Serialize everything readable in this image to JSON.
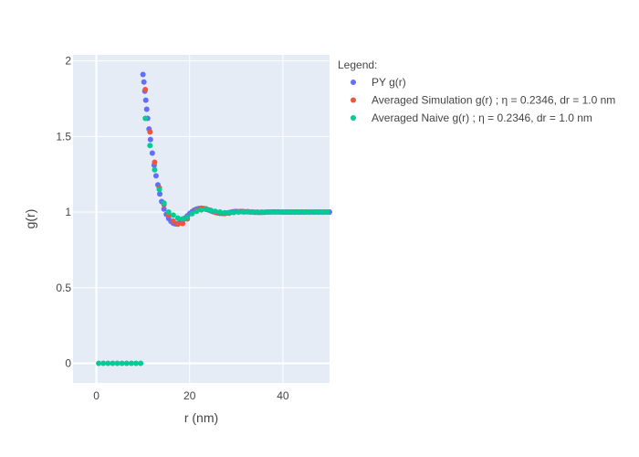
{
  "chart_data": {
    "type": "scatter",
    "xlabel": "r (nm)",
    "ylabel": "g(r)",
    "xlim": [
      -5,
      50
    ],
    "ylim": [
      -0.13,
      2.04
    ],
    "x_ticks": [
      0,
      20,
      40
    ],
    "y_ticks": [
      0,
      0.5,
      1,
      1.5,
      2
    ],
    "x_tick_labels": [
      "0",
      "20",
      "40"
    ],
    "y_tick_labels": [
      "0",
      "0.5",
      "1",
      "1.5",
      "2"
    ],
    "grid": true,
    "plot_background": "#e5ecf6",
    "legend": {
      "title": "Legend:",
      "placement": "right, outside plot"
    },
    "series": [
      {
        "name": "PY g(r)",
        "color": "#636efa",
        "x": [
          10.0,
          10.2,
          10.4,
          10.6,
          10.8,
          11.0,
          11.3,
          11.6,
          12.0,
          12.4,
          12.8,
          13.2,
          13.6,
          14.0,
          14.5,
          15.0,
          15.5,
          16.0,
          16.5,
          17.0,
          17.5,
          18.0,
          18.5,
          19.0,
          19.5,
          20.0,
          20.5,
          21.0,
          21.5,
          22.0,
          22.5,
          23.0,
          23.5,
          24.0,
          24.5,
          25.0,
          25.5,
          26.0,
          26.5,
          27.0,
          27.5,
          28.0,
          28.5,
          29.0,
          29.5,
          30.0,
          31.0,
          32.0,
          33.0,
          34.0,
          35.0,
          36.0,
          37.0,
          38.0,
          39.0,
          40.0,
          41.0,
          42.0,
          43.0,
          44.0,
          45.0,
          46.0,
          47.0,
          48.0,
          49.0,
          50.0
        ],
        "y": [
          1.91,
          1.86,
          1.8,
          1.74,
          1.68,
          1.62,
          1.55,
          1.48,
          1.39,
          1.31,
          1.24,
          1.18,
          1.12,
          1.07,
          1.02,
          0.985,
          0.958,
          0.938,
          0.926,
          0.922,
          0.924,
          0.932,
          0.945,
          0.96,
          0.975,
          0.99,
          1.003,
          1.013,
          1.02,
          1.024,
          1.025,
          1.024,
          1.02,
          1.015,
          1.009,
          1.003,
          0.998,
          0.994,
          0.992,
          0.991,
          0.992,
          0.994,
          0.997,
          1.0,
          1.003,
          1.004,
          1.004,
          1.002,
          1.0,
          0.999,
          0.998,
          0.999,
          1.0,
          1.001,
          1.001,
          1.0,
          1.0,
          1.0,
          1.0,
          1.0,
          1.0,
          1.0,
          1.0,
          1.0,
          1.0,
          1.0
        ]
      },
      {
        "name": "Averaged Simulation g(r) ; η = 0.2346, dr = 1.0 nm",
        "color": "#ef553b",
        "x": [
          10.5,
          11.5,
          12.5,
          13.5,
          14.5,
          15.5,
          16.5,
          17.5,
          18.5,
          19.5,
          20.5,
          21.5,
          22.5,
          23.5,
          24.5,
          25.5,
          26.5,
          27.5,
          28.5,
          29.5,
          30.5,
          31.5,
          32.5,
          33.5,
          34.5,
          35.5,
          36.5,
          37.5,
          38.5,
          39.5,
          40.5,
          41.5,
          42.5,
          43.5,
          44.5,
          45.5,
          46.5,
          47.5,
          48.5,
          49.5
        ],
        "y": [
          1.81,
          1.53,
          1.33,
          1.16,
          1.05,
          0.98,
          0.94,
          0.92,
          0.925,
          0.955,
          0.99,
          1.015,
          1.025,
          1.022,
          1.012,
          1.0,
          0.993,
          0.99,
          0.993,
          0.998,
          1.003,
          1.004,
          1.003,
          1.0,
          0.998,
          0.998,
          1.0,
          1.001,
          1.001,
          1.0,
          1.0,
          1.0,
          1.0,
          1.0,
          1.0,
          1.0,
          1.0,
          1.0,
          1.0,
          1.0
        ]
      },
      {
        "name": "Averaged Naive g(r) ; η = 0.2346, dr = 1.0 nm",
        "color": "#00cc96",
        "x": [
          0.5,
          1.5,
          2.5,
          3.5,
          4.5,
          5.5,
          6.5,
          7.5,
          8.5,
          9.5,
          10.5,
          11.5,
          12.5,
          13.5,
          14.5,
          15.5,
          16.5,
          17.5,
          18.5,
          19.5,
          20.5,
          21.5,
          22.5,
          23.5,
          24.5,
          25.5,
          26.5,
          27.5,
          28.5,
          29.5,
          30.5,
          31.5,
          32.5,
          33.5,
          34.5,
          35.5,
          36.5,
          37.5,
          38.5,
          39.5,
          40.5,
          41.5,
          42.5,
          43.5,
          44.5,
          45.5,
          46.5,
          47.5,
          48.5,
          49.5
        ],
        "y": [
          0,
          0,
          0,
          0,
          0,
          0,
          0,
          0,
          0,
          0,
          1.62,
          1.44,
          1.28,
          1.15,
          1.06,
          1.0,
          0.98,
          0.96,
          0.955,
          0.965,
          0.99,
          1.005,
          1.015,
          1.018,
          1.012,
          1.005,
          1.0,
          0.996,
          0.996,
          0.998,
          1.0,
          1.001,
          1.002,
          1.001,
          1.0,
          1.0,
          1.0,
          1.0,
          1.0,
          1.0,
          1.0,
          1.0,
          1.0,
          1.0,
          1.0,
          1.0,
          1.0,
          1.0,
          1.0,
          1.0
        ]
      }
    ]
  }
}
